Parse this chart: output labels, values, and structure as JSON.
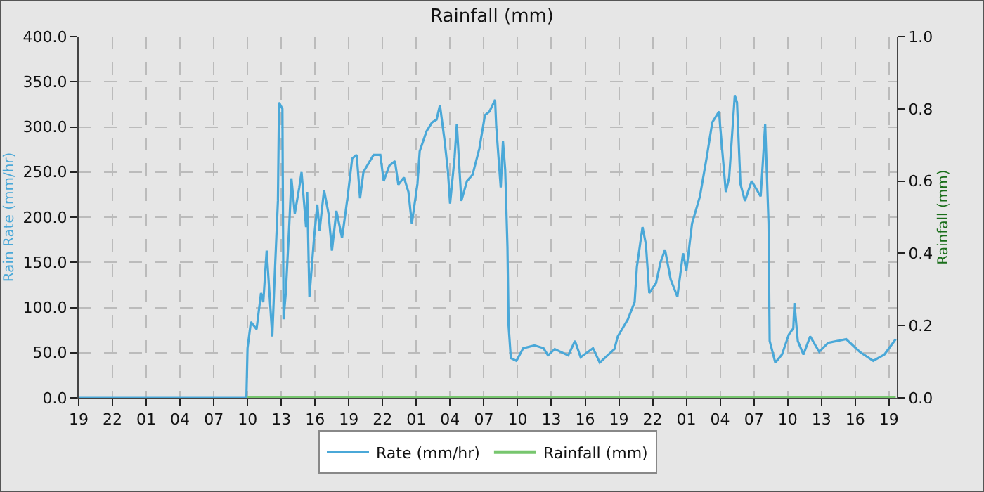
{
  "chart_data": {
    "type": "line",
    "title": "Rainfall (mm)",
    "ylabel": "Rain Rate (mm/hr)",
    "y2label": "Rainfall (mm)",
    "series": [
      {
        "name": "Rate (mm/hr)",
        "color": "#4aa8d8",
        "x": [
          "--01-01T19:00",
          "--01-02T09:54",
          "--01-02T10:00",
          "--01-02T10:18",
          "--01-02T10:48",
          "--01-02T11:12",
          "--01-02T11:24",
          "--01-02T11:42",
          "--01-02T12:12",
          "--01-02T12:24",
          "--01-02T12:42",
          "--01-02T12:48",
          "--01-02T13:06",
          "--01-02T13:12",
          "--01-02T13:24",
          "--01-02T13:42",
          "--01-02T13:54",
          "--01-02T14:12",
          "--01-02T14:36",
          "--01-02T14:48",
          "--01-02T15:12",
          "--01-02T15:18",
          "--01-02T15:30",
          "--01-02T15:54",
          "--01-02T16:12",
          "--01-02T16:24",
          "--01-02T16:48",
          "--01-02T17:12",
          "--01-02T17:30",
          "--01-02T17:54",
          "--01-02T18:24",
          "--01-02T18:54",
          "--01-02T19:18",
          "--01-02T19:42",
          "--01-02T20:00",
          "--01-02T20:18",
          "--01-02T21:12",
          "--01-02T21:48",
          "--01-02T22:06",
          "--01-02T22:36",
          "--01-02T23:06",
          "--01-02T23:24",
          "--01-02T23:54",
          "--01-03T00:18",
          "--01-03T00:36",
          "--01-03T01:06",
          "--01-03T01:18",
          "--01-03T01:54",
          "--01-03T02:24",
          "--01-03T02:48",
          "--01-03T03:06",
          "--01-03T03:30",
          "--01-03T03:48",
          "--01-03T04:00",
          "--01-03T04:24",
          "--01-03T04:36",
          "--01-03T05:00",
          "--01-03T05:30",
          "--01-03T06:00",
          "--01-03T06:36",
          "--01-03T07:06",
          "--01-03T07:30",
          "--01-03T08:00",
          "--01-03T08:06",
          "--01-03T08:30",
          "--01-03T08:42",
          "--01-03T08:54",
          "--01-03T09:06",
          "--01-03T09:12",
          "--01-03T09:24",
          "--01-03T09:54",
          "--01-03T10:30",
          "--01-03T11:30",
          "--01-03T12:18",
          "--01-03T12:42",
          "--01-03T13:18",
          "--01-03T14:30",
          "--01-03T15:06",
          "--01-03T15:36",
          "--01-03T16:42",
          "--01-03T17:18",
          "--01-03T18:36",
          "--01-03T18:54",
          "--01-03T19:48",
          "--01-03T20:24",
          "--01-03T20:36",
          "--01-03T21:06",
          "--01-03T21:24",
          "--01-03T21:42",
          "--01-03T22:18",
          "--01-03T22:42",
          "--01-03T23:06",
          "--01-03T23:36",
          "--01-04T00:12",
          "--01-04T00:42",
          "--01-04T01:00",
          "--01-04T01:30",
          "--01-04T02:12",
          "--01-04T02:48",
          "--01-04T03:18",
          "--01-04T03:54",
          "--01-04T04:00",
          "--01-04T04:30",
          "--01-04T04:48",
          "--01-04T05:18",
          "--01-04T05:30",
          "--01-04T05:48",
          "--01-04T06:12",
          "--01-04T06:48",
          "--01-04T07:36",
          "--01-04T07:48",
          "--01-04T08:00",
          "--01-04T08:18",
          "--01-04T08:24",
          "--01-04T08:54",
          "--01-04T09:30",
          "--01-04T10:06",
          "--01-04T10:30",
          "--01-04T10:36",
          "--01-04T10:54",
          "--01-04T11:24",
          "--01-04T12:00",
          "--01-04T12:48",
          "--01-04T13:36",
          "--01-04T15:12",
          "--01-04T16:24",
          "--01-04T17:36",
          "--01-04T18:36",
          "--01-04T19:36"
        ],
        "values": [
          0,
          0,
          55,
          84,
          76,
          116,
          106,
          163,
          68,
          131,
          218,
          327,
          320,
          87,
          116,
          189,
          243,
          204,
          233,
          250,
          189,
          228,
          112,
          175,
          214,
          185,
          230,
          204,
          163,
          207,
          177,
          223,
          265,
          269,
          221,
          250,
          269,
          269,
          240,
          257,
          262,
          236,
          244,
          228,
          193,
          237,
          273,
          295,
          305,
          308,
          324,
          286,
          252,
          215,
          266,
          303,
          218,
          240,
          247,
          276,
          313,
          317,
          330,
          301,
          233,
          284,
          252,
          167,
          80,
          44,
          41,
          55,
          58,
          55,
          47,
          54,
          47,
          63,
          45,
          55,
          39,
          54,
          68,
          87,
          106,
          145,
          189,
          170,
          116,
          127,
          150,
          164,
          131,
          112,
          160,
          141,
          193,
          223,
          266,
          305,
          317,
          301,
          228,
          244,
          335,
          327,
          237,
          218,
          240,
          223,
          262,
          303,
          193,
          63,
          39,
          48,
          70,
          77,
          105,
          63,
          48,
          68,
          51,
          61,
          65,
          51,
          41,
          48,
          65
        ]
      },
      {
        "name": "Rainfall (mm)",
        "type": "line",
        "axis": "y2",
        "color": "#77c66e",
        "x": [
          "--01-02T10:00",
          "--01-04T19:36"
        ],
        "values": [
          0,
          0
        ]
      }
    ],
    "xlim": [
      "--01-01T19:00",
      "--01-04T19:42"
    ],
    "xticks": [
      {
        "value": "--01-01T19:00",
        "label": "19"
      },
      {
        "value": "--01-01T22:00",
        "label": "22"
      },
      {
        "value": "--01-02T01:00",
        "label": "01"
      },
      {
        "value": "--01-02T04:00",
        "label": "04"
      },
      {
        "value": "--01-02T07:00",
        "label": "07"
      },
      {
        "value": "--01-02T10:00",
        "label": "10"
      },
      {
        "value": "--01-02T13:00",
        "label": "13"
      },
      {
        "value": "--01-02T16:00",
        "label": "16"
      },
      {
        "value": "--01-02T19:00",
        "label": "19"
      },
      {
        "value": "--01-02T22:00",
        "label": "22"
      },
      {
        "value": "--01-03T01:00",
        "label": "01"
      },
      {
        "value": "--01-03T04:00",
        "label": "04"
      },
      {
        "value": "--01-03T07:00",
        "label": "07"
      },
      {
        "value": "--01-03T10:00",
        "label": "10"
      },
      {
        "value": "--01-03T13:00",
        "label": "13"
      },
      {
        "value": "--01-03T16:00",
        "label": "16"
      },
      {
        "value": "--01-03T19:00",
        "label": "19"
      },
      {
        "value": "--01-03T22:00",
        "label": "22"
      },
      {
        "value": "--01-04T01:00",
        "label": "01"
      },
      {
        "value": "--01-04T04:00",
        "label": "04"
      },
      {
        "value": "--01-04T07:00",
        "label": "07"
      },
      {
        "value": "--01-04T10:00",
        "label": "10"
      },
      {
        "value": "--01-04T13:00",
        "label": "13"
      },
      {
        "value": "--01-04T16:00",
        "label": "16"
      },
      {
        "value": "--01-04T19:00",
        "label": "19"
      }
    ],
    "ylim": [
      0,
      400
    ],
    "yticks": [
      {
        "value": 0,
        "label": "0.0"
      },
      {
        "value": 50,
        "label": "50.0"
      },
      {
        "value": 100,
        "label": "100.0"
      },
      {
        "value": 150,
        "label": "150.0"
      },
      {
        "value": 200,
        "label": "200.0"
      },
      {
        "value": 250,
        "label": "250.0"
      },
      {
        "value": 300,
        "label": "300.0"
      },
      {
        "value": 350,
        "label": "350.0"
      },
      {
        "value": 400,
        "label": "400.0"
      }
    ],
    "y2lim": [
      0,
      1
    ],
    "y2ticks": [
      {
        "value": 0,
        "label": "0.0"
      },
      {
        "value": 0.2,
        "label": "0.2"
      },
      {
        "value": 0.4,
        "label": "0.4"
      },
      {
        "value": 0.6,
        "label": "0.6"
      },
      {
        "value": 0.8,
        "label": "0.8"
      },
      {
        "value": 1,
        "label": "1.0"
      }
    ],
    "grid": true,
    "legend": "bottom",
    "line_style": "solid",
    "marker": "none"
  }
}
